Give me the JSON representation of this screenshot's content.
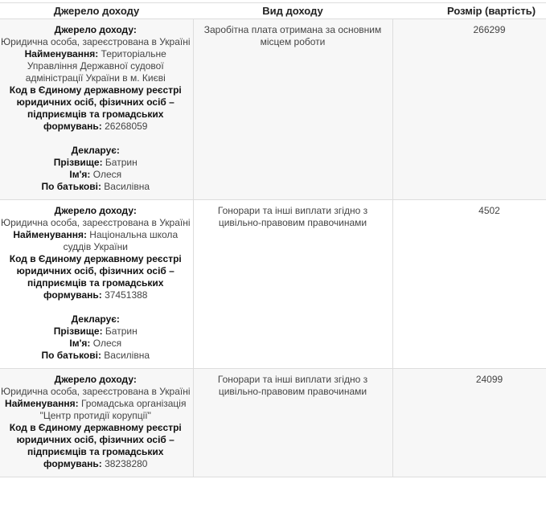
{
  "headers": [
    "Джерело доходу",
    "Вид доходу",
    "Розмір (вартість)"
  ],
  "rows": [
    {
      "source": [
        [
          {
            "b": "Джерело доходу:"
          }
        ],
        [
          {
            "t": "Юридична особа, зареєстрована в Україні"
          }
        ],
        [
          {
            "b": "Найменування:"
          },
          {
            "t": " Територіальне Управління Державної судової адміністрації України в м. Києві"
          }
        ],
        [
          {
            "b": "Код в Єдиному державному реєстрі юридичних осіб, фізичних осіб – підприємців та громадських формувань:"
          },
          {
            "t": " 26268059"
          }
        ],
        [],
        [
          {
            "b": "Декларує:"
          }
        ],
        [
          {
            "b": "Прізвище:"
          },
          {
            "t": " Батрин"
          }
        ],
        [
          {
            "b": "Ім'я:"
          },
          {
            "t": " Олеся"
          }
        ],
        [
          {
            "b": "По батькові:"
          },
          {
            "t": " Василівна"
          }
        ]
      ],
      "type": "Заробітна плата отримана за основним місцем роботи",
      "amount": "266299"
    },
    {
      "source": [
        [
          {
            "b": "Джерело доходу:"
          }
        ],
        [
          {
            "t": "Юридична особа, зареєстрована в Україні"
          }
        ],
        [
          {
            "b": "Найменування:"
          },
          {
            "t": " Національна школа суддів України"
          }
        ],
        [
          {
            "b": "Код в Єдиному державному реєстрі юридичних осіб, фізичних осіб – підприємців та громадських формувань:"
          },
          {
            "t": " 37451388"
          }
        ],
        [],
        [
          {
            "b": "Декларує:"
          }
        ],
        [
          {
            "b": "Прізвище:"
          },
          {
            "t": " Батрин"
          }
        ],
        [
          {
            "b": "Ім'я:"
          },
          {
            "t": " Олеся"
          }
        ],
        [
          {
            "b": "По батькові:"
          },
          {
            "t": " Василівна"
          }
        ]
      ],
      "type": "Гонорари та інші виплати згідно з цивільно-правовим правочинами",
      "amount": "4502"
    },
    {
      "source": [
        [
          {
            "b": "Джерело доходу:"
          }
        ],
        [
          {
            "t": "Юридична особа, зареєстрована в Україні"
          }
        ],
        [
          {
            "b": "Найменування:"
          },
          {
            "t": " Громадська організація \"Центр протидії корупції\""
          }
        ],
        [
          {
            "b": "Код в Єдиному державному реєстрі юридичних осіб, фізичних осіб – підприємців та громадських формувань:"
          },
          {
            "t": " 38238280"
          }
        ]
      ],
      "type": "Гонорари та інші виплати згідно з цивільно-правовим правочинами",
      "amount": "24099"
    }
  ]
}
